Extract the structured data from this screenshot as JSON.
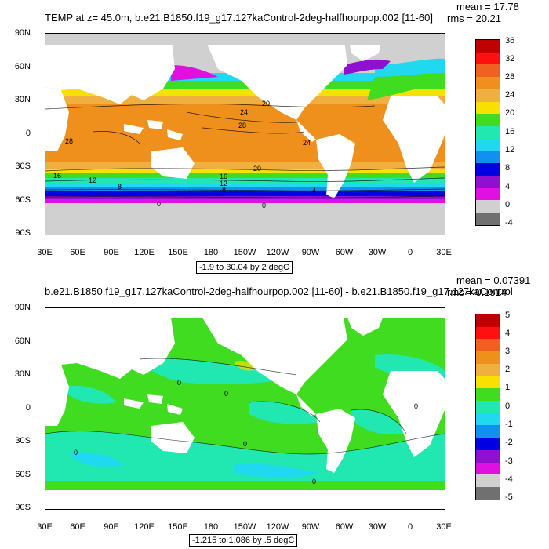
{
  "panels": [
    {
      "title": "TEMP at z=  45.0m, b.e21.B1850.f19_g17.127kaControl-2deg-halfhourpop.002 [11-60]",
      "mean": "mean = 17.78",
      "rms": "rms = 20.21",
      "info": "-1.9 to 30.04 by 2 degC",
      "y_ticks": [
        "90N",
        "60N",
        "30N",
        "0",
        "30S",
        "60S",
        "90S"
      ],
      "x_ticks": [
        "30E",
        "60E",
        "90E",
        "120E",
        "150E",
        "180",
        "150W",
        "120W",
        "90W",
        "60W",
        "30W",
        "0",
        "30E"
      ],
      "contour_labels": [
        "20",
        "24",
        "28",
        "28",
        "24",
        "20",
        "16",
        "12",
        "8",
        "4",
        "0",
        "0",
        "16",
        "12",
        "8"
      ],
      "legend_labels": [
        "36",
        "32",
        "28",
        "24",
        "20",
        "16",
        "12",
        "8",
        "4",
        "0",
        "-4"
      ],
      "legend_colors": [
        "#c00000",
        "#ff1010",
        "#f06020",
        "#f0901c",
        "#f0b040",
        "#f8e000",
        "#40dc20",
        "#20e8b0",
        "#20d8f0",
        "#1090f0",
        "#0000e0",
        "#9010d0",
        "#e010e0",
        "#d0d0d0",
        "#707070"
      ]
    },
    {
      "title": "b.e21.B1850.f19_g17.127kaControl-2deg-halfhourpop.002 [11-60] - b.e21.B1850.f19_g17.127kaControl",
      "mean": "mean = 0.07391",
      "rms": "rms = 0.1514",
      "info": "-1.215 to 1.086 by .5 degC",
      "y_ticks": [
        "90N",
        "60N",
        "30N",
        "0",
        "30S",
        "60S",
        "90S"
      ],
      "x_ticks": [
        "30E",
        "60E",
        "90E",
        "120E",
        "150E",
        "180",
        "150W",
        "120W",
        "90W",
        "60W",
        "30W",
        "0",
        "30E"
      ],
      "contour_labels": [
        "0",
        "0",
        "0",
        "0",
        "0",
        "0"
      ],
      "legend_labels": [
        "5",
        "4",
        "3",
        "2",
        "1",
        "0",
        "-1",
        "-2",
        "-3",
        "-4",
        "-5"
      ],
      "legend_colors": [
        "#c00000",
        "#ff1010",
        "#f06020",
        "#f0901c",
        "#f0b040",
        "#f8e000",
        "#40dc20",
        "#20e8b0",
        "#20d8f0",
        "#1090f0",
        "#0000e0",
        "#9010d0",
        "#e010e0",
        "#d0d0d0",
        "#707070"
      ]
    }
  ]
}
